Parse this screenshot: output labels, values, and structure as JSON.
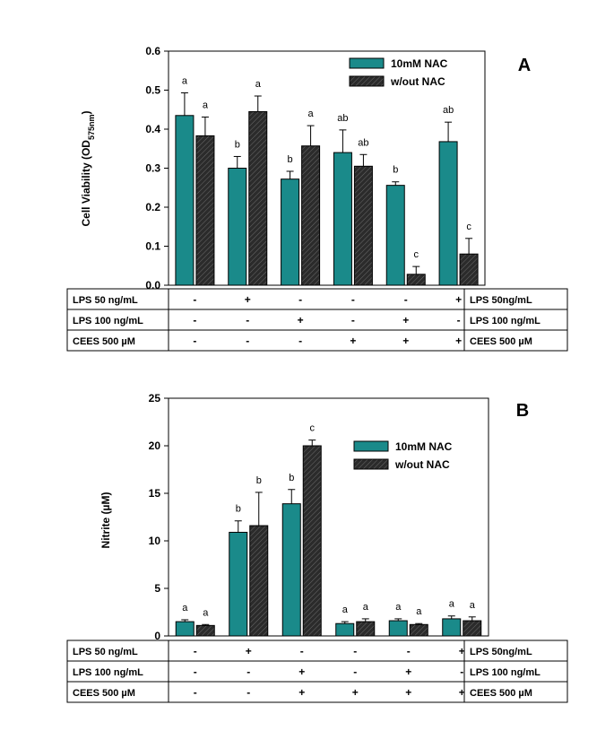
{
  "colors": {
    "teal": "#1a8a8a",
    "dark": "#2b2b2b",
    "stroke": "#000000"
  },
  "chart_data": [
    {
      "panel": "A",
      "type": "bar",
      "ylabel_main": "Cell Viability (OD",
      "ylabel_sub": "575nm",
      "ylabel_close": ")",
      "ylim": [
        0,
        0.6
      ],
      "yticks": [
        "0.0",
        "0.1",
        "0.2",
        "0.3",
        "0.4",
        "0.5",
        "0.6"
      ],
      "legend_position": "top-right",
      "series": [
        {
          "name": "10mM NAC",
          "color": "#1a8a8a",
          "values": [
            0.435,
            0.3,
            0.272,
            0.34,
            0.256,
            0.368
          ],
          "errors": [
            0.058,
            0.03,
            0.02,
            0.058,
            0.009,
            0.05
          ],
          "letters": [
            "a",
            "b",
            "b",
            "ab",
            "b",
            "ab"
          ]
        },
        {
          "name": "w/out  NAC",
          "color": "#2b2b2b",
          "values": [
            0.383,
            0.445,
            0.357,
            0.305,
            0.028,
            0.08
          ],
          "errors": [
            0.048,
            0.04,
            0.052,
            0.03,
            0.02,
            0.04
          ],
          "letters": [
            "a",
            "a",
            "a",
            "ab",
            "c",
            "c"
          ]
        }
      ],
      "treatments": [
        {
          "left": "LPS   50 ng/mL",
          "right": "LPS   50ng/mL",
          "cells": [
            "-",
            "+",
            "-",
            "-",
            "-",
            "+"
          ]
        },
        {
          "left": "LPS 100 ng/mL",
          "right": "LPS 100 ng/mL",
          "cells": [
            "-",
            "-",
            "+",
            "-",
            "+",
            "-"
          ]
        },
        {
          "left": "CEES  500 µM",
          "right": "CEES  500 µM",
          "cells": [
            "-",
            "-",
            "-",
            "+",
            "+",
            "+"
          ]
        }
      ]
    },
    {
      "panel": "B",
      "type": "bar",
      "ylabel_main": "Nitrite  (µM)",
      "ylim": [
        0,
        25
      ],
      "yticks": [
        "0",
        "5",
        "10",
        "15",
        "20",
        "25"
      ],
      "legend_position": "top-right",
      "series": [
        {
          "name": "10mM  NAC",
          "color": "#1a8a8a",
          "values": [
            1.5,
            10.9,
            13.9,
            1.3,
            1.6,
            1.8
          ],
          "errors": [
            0.2,
            1.2,
            1.5,
            0.2,
            0.2,
            0.3
          ],
          "letters": [
            "a",
            "b",
            "b",
            "a",
            "a",
            "a"
          ]
        },
        {
          "name": "w/out  NAC",
          "color": "#2b2b2b",
          "values": [
            1.1,
            11.6,
            20.0,
            1.5,
            1.2,
            1.6
          ],
          "errors": [
            0.1,
            3.5,
            0.6,
            0.3,
            0.1,
            0.4
          ],
          "letters": [
            "a",
            "b",
            "c",
            "a",
            "a",
            "a"
          ]
        }
      ],
      "treatments": [
        {
          "left": "LPS   50 ng/mL",
          "right": "LPS   50ng/mL",
          "cells": [
            "-",
            "+",
            "-",
            "-",
            "-",
            "+"
          ]
        },
        {
          "left": "LPS 100 ng/mL",
          "right": "LPS 100 ng/mL",
          "cells": [
            "-",
            "-",
            "+",
            "-",
            "+",
            "-"
          ]
        },
        {
          "left": "CEES  500 µM",
          "right": "CEES  500 µM",
          "cells": [
            "-",
            "-",
            "+",
            "+",
            "+",
            "+"
          ]
        }
      ]
    }
  ]
}
